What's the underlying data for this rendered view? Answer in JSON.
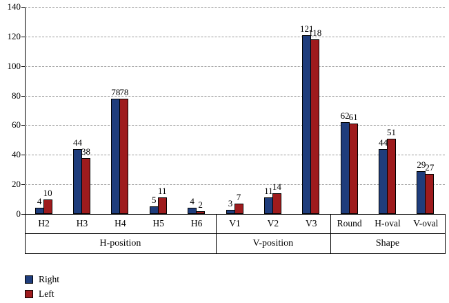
{
  "chart_data": {
    "type": "bar",
    "title": "",
    "ylabel": "",
    "xlabel": "",
    "ylim": [
      0,
      140
    ],
    "ytick_step": 20,
    "grid": "dashed-horizontal",
    "legend_position": "bottom-left",
    "groups": [
      {
        "label": "H-position",
        "categories": [
          "H2",
          "H3",
          "H4",
          "H5",
          "H6"
        ]
      },
      {
        "label": "V-position",
        "categories": [
          "V1",
          "V2",
          "V3"
        ]
      },
      {
        "label": "Shape",
        "categories": [
          "Round",
          "H-oval",
          "V-oval"
        ]
      }
    ],
    "series": [
      {
        "name": "Right",
        "color": "#1f3d7c",
        "values": [
          4,
          44,
          78,
          5,
          4,
          3,
          11,
          121,
          62,
          44,
          29
        ]
      },
      {
        "name": "Left",
        "color": "#9e1b1d",
        "values": [
          10,
          38,
          78,
          11,
          2,
          7,
          14,
          118,
          61,
          51,
          27
        ]
      }
    ]
  },
  "legend": {
    "right_label": "Right",
    "left_label": "Left"
  }
}
